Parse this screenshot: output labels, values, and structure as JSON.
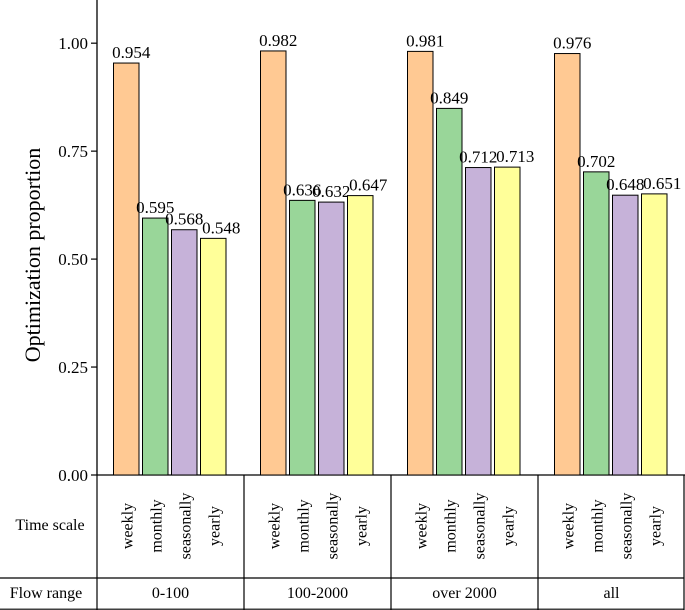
{
  "chart_data": {
    "type": "bar",
    "ylabel": "Optimization proportion",
    "ylim": [
      0,
      1.1
    ],
    "yticks": [
      "0.00",
      "0.25",
      "0.50",
      "0.75",
      "1.00"
    ],
    "ytick_values": [
      0,
      0.25,
      0.5,
      0.75,
      1.0
    ],
    "row_labels": {
      "time_scale": "Time scale",
      "flow_range": "Flow range"
    },
    "categories": [
      "0-100",
      "100-2000",
      "over 2000",
      "all"
    ],
    "series": [
      {
        "name": "weekly",
        "color": "#FFC993",
        "values": [
          0.954,
          0.982,
          0.981,
          0.976
        ],
        "labels": [
          "0.954",
          "0.982",
          "0.981",
          "0.976"
        ]
      },
      {
        "name": "monthly",
        "color": "#99D699",
        "values": [
          0.595,
          0.636,
          0.849,
          0.702
        ],
        "labels": [
          "0.595",
          "0.636",
          "0.849",
          "0.702"
        ]
      },
      {
        "name": "seasonally",
        "color": "#C6B2D9",
        "values": [
          0.568,
          0.632,
          0.712,
          0.648
        ],
        "labels": [
          "0.568",
          "0.632",
          "0.712",
          "0.648"
        ]
      },
      {
        "name": "yearly",
        "color": "#FFFF99",
        "values": [
          0.548,
          0.647,
          0.713,
          0.651
        ],
        "labels": [
          "0.548",
          "0.647",
          "0.713",
          "0.651"
        ]
      }
    ]
  }
}
